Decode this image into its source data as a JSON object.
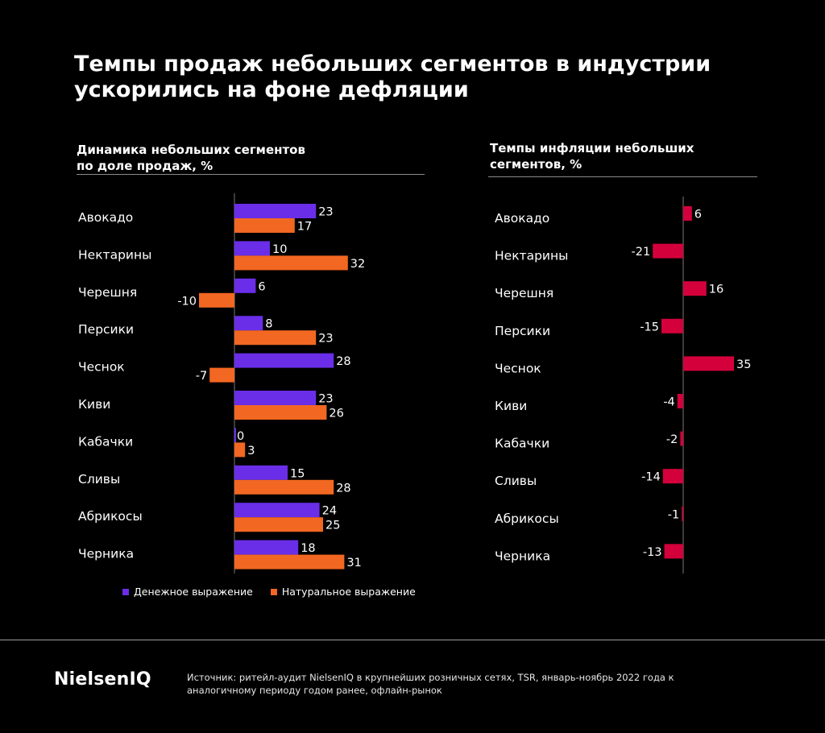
{
  "title": "Темпы продаж небольших сегментов в индустрии ускорились на фоне дефляции",
  "colors": {
    "money": "#6a2ee8",
    "natural": "#f26722",
    "inflation": "#d4003c"
  },
  "chart_data": [
    {
      "type": "bar",
      "orientation": "horizontal",
      "title": "Динамика небольших сегментов\nпо доле продаж, %",
      "categories": [
        "Авокадо",
        "Нектарины",
        "Черешня",
        "Персики",
        "Чеснок",
        "Киви",
        "Кабачки",
        "Сливы",
        "Абрикосы",
        "Черника"
      ],
      "series": [
        {
          "name": "Денежное выражение",
          "values": [
            23,
            10,
            6,
            8,
            28,
            23,
            0,
            15,
            24,
            18
          ]
        },
        {
          "name": "Натуральное выражение",
          "values": [
            17,
            32,
            -10,
            23,
            -7,
            26,
            3,
            28,
            25,
            31
          ]
        }
      ],
      "legend": "bottom"
    },
    {
      "type": "bar",
      "orientation": "horizontal",
      "title": "Темпы инфляции небольших\nсегментов, %",
      "categories": [
        "Авокадо",
        "Нектарины",
        "Черешня",
        "Персики",
        "Чеснок",
        "Киви",
        "Кабачки",
        "Сливы",
        "Абрикосы",
        "Черника"
      ],
      "series": [
        {
          "values": [
            6,
            -21,
            16,
            -15,
            35,
            -4,
            -2,
            -14,
            -1,
            -13
          ]
        }
      ]
    }
  ],
  "footer": {
    "logo": "NielsenIQ",
    "source": "Источник: ритейл-аудит NielsenIQ в крупнейших розничных сетях, TSR, январь-ноябрь 2022 года к аналогичному периоду годом ранее, офлайн-рынок"
  }
}
